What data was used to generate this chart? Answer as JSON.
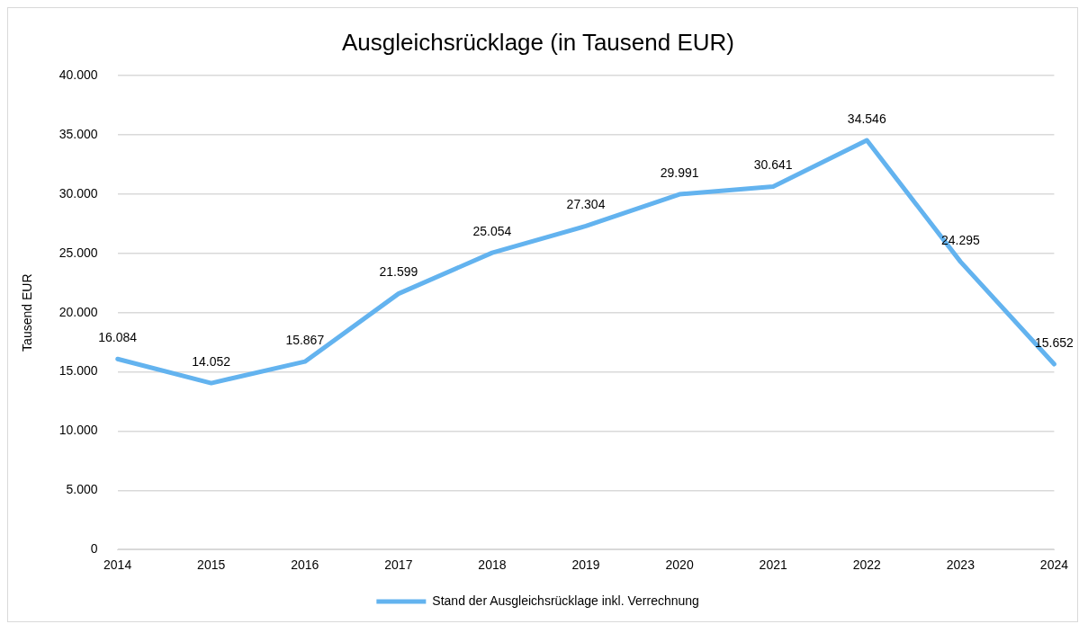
{
  "chart_data": {
    "type": "line",
    "title": "Ausgleichsrücklage (in Tausend EUR)",
    "ylabel": "Tausend EUR",
    "categories": [
      "2014",
      "2015",
      "2016",
      "2017",
      "2018",
      "2019",
      "2020",
      "2021",
      "2022",
      "2023",
      "2024"
    ],
    "series": [
      {
        "name": "Stand der Ausgleichsrücklage inkl. Verrechnung",
        "color": "#63b3ef",
        "values": [
          16084,
          14052,
          15867,
          21599,
          25054,
          27304,
          29991,
          30641,
          34546,
          24295,
          15652
        ],
        "value_labels": [
          "16.084",
          "14.052",
          "15.867",
          "21.599",
          "25.054",
          "27.304",
          "29.991",
          "30.641",
          "34.546",
          "24.295",
          "15.652"
        ]
      }
    ],
    "ylim": [
      0,
      40000
    ],
    "yticks": [
      {
        "value": 0,
        "label": "0"
      },
      {
        "value": 5000,
        "label": "5.000"
      },
      {
        "value": 10000,
        "label": "10.000"
      },
      {
        "value": 15000,
        "label": "15.000"
      },
      {
        "value": 20000,
        "label": "20.000"
      },
      {
        "value": 25000,
        "label": "25.000"
      },
      {
        "value": 30000,
        "label": "30.000"
      },
      {
        "value": 35000,
        "label": "35.000"
      },
      {
        "value": 40000,
        "label": "40.000"
      }
    ],
    "grid": "y",
    "legend": "bottom",
    "marker": "none",
    "line_style": "solid"
  }
}
